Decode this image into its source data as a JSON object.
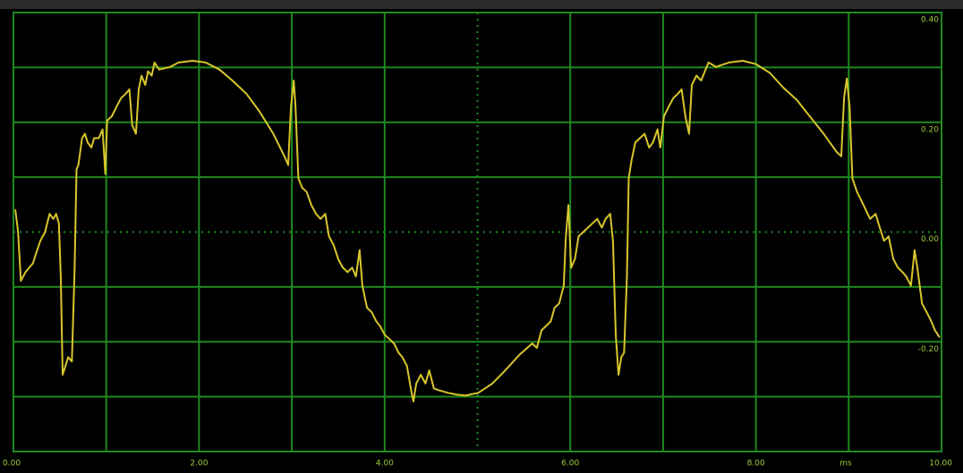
{
  "chart_data": {
    "type": "line",
    "x": [
      0.02,
      0.05,
      0.08,
      0.13,
      0.17,
      0.21,
      0.24,
      0.29,
      0.34,
      0.39,
      0.43,
      0.46,
      0.49,
      0.51,
      0.53,
      0.56,
      0.59,
      0.63,
      0.66,
      0.68,
      0.7,
      0.74,
      0.77,
      0.8,
      0.84,
      0.87,
      0.92,
      0.96,
      0.99,
      1.01,
      1.06,
      1.11,
      1.16,
      1.21,
      1.25,
      1.28,
      1.32,
      1.35,
      1.38,
      1.42,
      1.45,
      1.49,
      1.52,
      1.57,
      1.69,
      1.78,
      1.93,
      2.07,
      2.22,
      2.36,
      2.51,
      2.65,
      2.8,
      2.92,
      2.96,
      2.99,
      3.02,
      3.04,
      3.07,
      3.11,
      3.16,
      3.21,
      3.26,
      3.31,
      3.36,
      3.4,
      3.45,
      3.5,
      3.55,
      3.6,
      3.65,
      3.69,
      3.73,
      3.76,
      3.81,
      3.86,
      3.91,
      3.95,
      4.0,
      4.05,
      4.1,
      4.15,
      4.19,
      4.24,
      4.29,
      4.31,
      4.34,
      4.39,
      4.44,
      4.48,
      4.53,
      4.58,
      4.68,
      4.77,
      4.87,
      5.01,
      5.16,
      5.3,
      5.45,
      5.59,
      5.64,
      5.69,
      5.74,
      5.79,
      5.83,
      5.88,
      5.93,
      5.95,
      5.98,
      6.01,
      6.05,
      6.09,
      6.14,
      6.19,
      6.24,
      6.29,
      6.34,
      6.38,
      6.43,
      6.46,
      6.49,
      6.52,
      6.55,
      6.58,
      6.61,
      6.63,
      6.66,
      6.7,
      6.75,
      6.8,
      6.85,
      6.89,
      6.94,
      6.97,
      7.01,
      7.06,
      7.11,
      7.16,
      7.2,
      7.24,
      7.28,
      7.31,
      7.36,
      7.41,
      7.45,
      7.49,
      7.57,
      7.71,
      7.86,
      8.0,
      8.15,
      8.29,
      8.44,
      8.58,
      8.73,
      8.87,
      8.92,
      8.95,
      8.98,
      9.01,
      9.04,
      9.09,
      9.16,
      9.23,
      9.29,
      9.32,
      9.38,
      9.43,
      9.48,
      9.53,
      9.58,
      9.62,
      9.67,
      9.71,
      9.74,
      9.79,
      9.84,
      9.89,
      9.93,
      9.98
    ],
    "values": [
      0.041,
      0,
      -0.089,
      -0.073,
      -0.065,
      -0.057,
      -0.041,
      -0.016,
      0,
      0.033,
      0.024,
      0.033,
      0.016,
      -0.081,
      -0.26,
      -0.244,
      -0.228,
      -0.236,
      -0.065,
      0.114,
      0.122,
      0.171,
      0.179,
      0.163,
      0.154,
      0.171,
      0.171,
      0.187,
      0.106,
      0.203,
      0.211,
      0.228,
      0.244,
      0.252,
      0.26,
      0.195,
      0.179,
      0.26,
      0.285,
      0.268,
      0.293,
      0.285,
      0.309,
      0.296,
      0.301,
      0.309,
      0.312,
      0.309,
      0.296,
      0.276,
      0.252,
      0.22,
      0.179,
      0.138,
      0.122,
      0.228,
      0.276,
      0.228,
      0.098,
      0.081,
      0.073,
      0.049,
      0.033,
      0.024,
      0.033,
      -0.008,
      -0.024,
      -0.049,
      -0.065,
      -0.073,
      -0.065,
      -0.081,
      -0.033,
      -0.098,
      -0.138,
      -0.146,
      -0.163,
      -0.171,
      -0.187,
      -0.195,
      -0.203,
      -0.22,
      -0.228,
      -0.244,
      -0.293,
      -0.309,
      -0.276,
      -0.26,
      -0.276,
      -0.252,
      -0.285,
      -0.288,
      -0.293,
      -0.296,
      -0.298,
      -0.293,
      -0.276,
      -0.252,
      -0.224,
      -0.203,
      -0.211,
      -0.179,
      -0.171,
      -0.163,
      -0.138,
      -0.13,
      -0.098,
      -0.016,
      0.049,
      -0.065,
      -0.049,
      -0.008,
      0,
      0.008,
      0.016,
      0.024,
      0.008,
      0.024,
      0.033,
      -0.016,
      -0.187,
      -0.26,
      -0.228,
      -0.22,
      -0.081,
      0.098,
      0.13,
      0.163,
      0.171,
      0.179,
      0.154,
      0.163,
      0.187,
      0.154,
      0.211,
      0.228,
      0.244,
      0.252,
      0.26,
      0.211,
      0.179,
      0.268,
      0.285,
      0.276,
      0.293,
      0.309,
      0.301,
      0.309,
      0.312,
      0.306,
      0.29,
      0.264,
      0.241,
      0.211,
      0.179,
      0.146,
      0.138,
      0.244,
      0.28,
      0.228,
      0.098,
      0.073,
      0.049,
      0.024,
      0.033,
      0.016,
      -0.016,
      -0.008,
      -0.049,
      -0.065,
      -0.073,
      -0.081,
      -0.098,
      -0.033,
      -0.065,
      -0.13,
      -0.146,
      -0.163,
      -0.179,
      -0.192
    ],
    "color": "#d8c62c",
    "xlim": [
      0,
      10
    ],
    "ylim": [
      -0.4,
      0.4
    ],
    "xticks": [
      {
        "value": 0,
        "label": "0.00"
      },
      {
        "value": 2,
        "label": "2.00"
      },
      {
        "value": 4,
        "label": "4.00"
      },
      {
        "value": 6,
        "label": "6.00"
      },
      {
        "value": 8,
        "label": "8.00"
      },
      {
        "value": 10,
        "label": "10.00"
      }
    ],
    "yticks": [
      {
        "value": 0.4,
        "label": "0.40"
      },
      {
        "value": 0.2,
        "label": "0.20"
      },
      {
        "value": 0,
        "label": "0.00"
      },
      {
        "value": -0.2,
        "label": "-0.20"
      }
    ],
    "xgrid": [
      0,
      1,
      2,
      3,
      4,
      5,
      6,
      7,
      8,
      9,
      10
    ],
    "ygrid": [
      -0.4,
      -0.3,
      -0.2,
      -0.1,
      0,
      0.1,
      0.2,
      0.3,
      0.4
    ],
    "xlabel": "ms",
    "grid_color": "#1f8a1f"
  }
}
